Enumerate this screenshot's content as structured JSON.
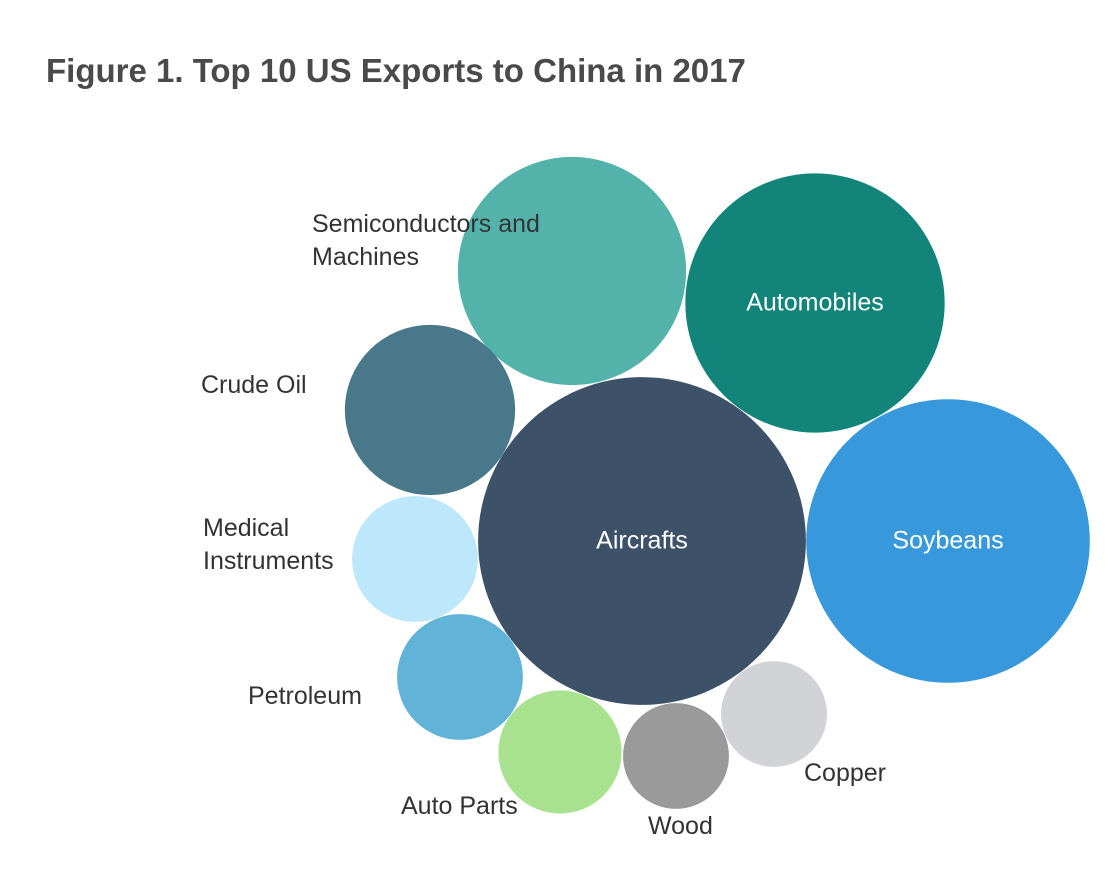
{
  "chart_data": {
    "type": "bubble",
    "title": "Figure 1. Top 10 US Exports to China in 2017",
    "categories": [
      "Aircrafts",
      "Soybeans",
      "Automobiles",
      "Semiconductors and Machines",
      "Crude Oil",
      "Medical Instruments",
      "Petroleum",
      "Auto Parts",
      "Wood",
      "Copper"
    ],
    "values": [
      16.3,
      12.2,
      10.2,
      7.9,
      4.4,
      2.4,
      2.4,
      2.3,
      1.7,
      1.7
    ],
    "colors": [
      "#3d5269",
      "#3898dc",
      "#12847a",
      "#53b3ab",
      "#48788a",
      "#bde7fb",
      "#61b3d7",
      "#a8e28f",
      "#9a9a9a",
      "#d2d3d7"
    ]
  }
}
